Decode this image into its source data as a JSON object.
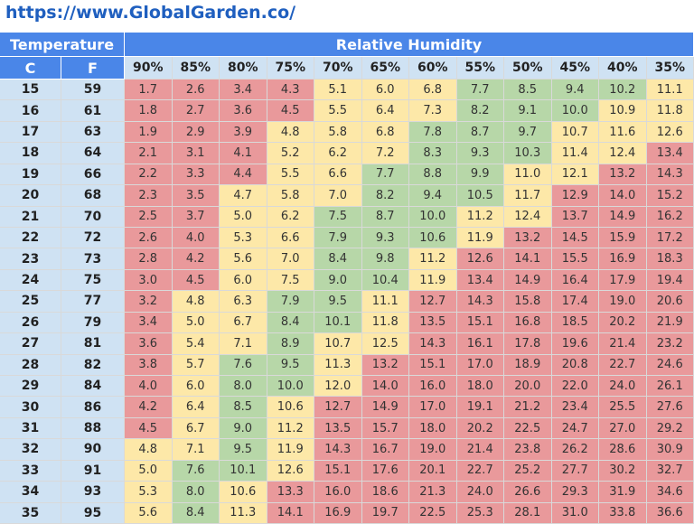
{
  "url": "https://www.GlobalGarden.co/",
  "table": {
    "temperature_header": "Temperature",
    "humidity_header": "Relative Humidity",
    "c_header": "C",
    "f_header": "F",
    "humidity": [
      "90%",
      "85%",
      "80%",
      "75%",
      "70%",
      "65%",
      "60%",
      "55%",
      "50%",
      "45%",
      "40%",
      "35%"
    ],
    "rows": [
      {
        "c": "15",
        "f": "59",
        "values": [
          "1.7",
          "2.6",
          "3.4",
          "4.3",
          "5.1",
          "6.0",
          "6.8",
          "7.7",
          "8.5",
          "9.4",
          "10.2",
          "11.1"
        ],
        "colors": [
          "#e9999b",
          "#e9999b",
          "#e9999b",
          "#e9999b",
          "#fde8a8",
          "#fde8a8",
          "#fde8a8",
          "#b7d7a8",
          "#b7d7a8",
          "#b7d7a8",
          "#b7d7a8",
          "#fde8a8"
        ]
      },
      {
        "c": "16",
        "f": "61",
        "values": [
          "1.8",
          "2.7",
          "3.6",
          "4.5",
          "5.5",
          "6.4",
          "7.3",
          "8.2",
          "9.1",
          "10.0",
          "10.9",
          "11.8"
        ],
        "colors": [
          "#e9999b",
          "#e9999b",
          "#e9999b",
          "#e9999b",
          "#fde8a8",
          "#fde8a8",
          "#fde8a8",
          "#b7d7a8",
          "#b7d7a8",
          "#b7d7a8",
          "#fde8a8",
          "#fde8a8"
        ]
      },
      {
        "c": "17",
        "f": "63",
        "values": [
          "1.9",
          "2.9",
          "3.9",
          "4.8",
          "5.8",
          "6.8",
          "7.8",
          "8.7",
          "9.7",
          "10.7",
          "11.6",
          "12.6"
        ],
        "colors": [
          "#e9999b",
          "#e9999b",
          "#e9999b",
          "#fde8a8",
          "#fde8a8",
          "#fde8a8",
          "#b7d7a8",
          "#b7d7a8",
          "#b7d7a8",
          "#fde8a8",
          "#fde8a8",
          "#fde8a8"
        ]
      },
      {
        "c": "18",
        "f": "64",
        "values": [
          "2.1",
          "3.1",
          "4.1",
          "5.2",
          "6.2",
          "7.2",
          "8.3",
          "9.3",
          "10.3",
          "11.4",
          "12.4",
          "13.4"
        ],
        "colors": [
          "#e9999b",
          "#e9999b",
          "#e9999b",
          "#fde8a8",
          "#fde8a8",
          "#fde8a8",
          "#b7d7a8",
          "#b7d7a8",
          "#b7d7a8",
          "#fde8a8",
          "#fde8a8",
          "#e9999b"
        ]
      },
      {
        "c": "19",
        "f": "66",
        "values": [
          "2.2",
          "3.3",
          "4.4",
          "5.5",
          "6.6",
          "7.7",
          "8.8",
          "9.9",
          "11.0",
          "12.1",
          "13.2",
          "14.3"
        ],
        "colors": [
          "#e9999b",
          "#e9999b",
          "#e9999b",
          "#fde8a8",
          "#fde8a8",
          "#b7d7a8",
          "#b7d7a8",
          "#b7d7a8",
          "#fde8a8",
          "#fde8a8",
          "#e9999b",
          "#e9999b"
        ]
      },
      {
        "c": "20",
        "f": "68",
        "values": [
          "2.3",
          "3.5",
          "4.7",
          "5.8",
          "7.0",
          "8.2",
          "9.4",
          "10.5",
          "11.7",
          "12.9",
          "14.0",
          "15.2"
        ],
        "colors": [
          "#e9999b",
          "#e9999b",
          "#fde8a8",
          "#fde8a8",
          "#fde8a8",
          "#b7d7a8",
          "#b7d7a8",
          "#b7d7a8",
          "#fde8a8",
          "#e9999b",
          "#e9999b",
          "#e9999b"
        ]
      },
      {
        "c": "21",
        "f": "70",
        "values": [
          "2.5",
          "3.7",
          "5.0",
          "6.2",
          "7.5",
          "8.7",
          "10.0",
          "11.2",
          "12.4",
          "13.7",
          "14.9",
          "16.2"
        ],
        "colors": [
          "#e9999b",
          "#e9999b",
          "#fde8a8",
          "#fde8a8",
          "#b7d7a8",
          "#b7d7a8",
          "#b7d7a8",
          "#fde8a8",
          "#fde8a8",
          "#e9999b",
          "#e9999b",
          "#e9999b"
        ]
      },
      {
        "c": "22",
        "f": "72",
        "values": [
          "2.6",
          "4.0",
          "5.3",
          "6.6",
          "7.9",
          "9.3",
          "10.6",
          "11.9",
          "13.2",
          "14.5",
          "15.9",
          "17.2"
        ],
        "colors": [
          "#e9999b",
          "#e9999b",
          "#fde8a8",
          "#fde8a8",
          "#b7d7a8",
          "#b7d7a8",
          "#b7d7a8",
          "#fde8a8",
          "#e9999b",
          "#e9999b",
          "#e9999b",
          "#e9999b"
        ]
      },
      {
        "c": "23",
        "f": "73",
        "values": [
          "2.8",
          "4.2",
          "5.6",
          "7.0",
          "8.4",
          "9.8",
          "11.2",
          "12.6",
          "14.1",
          "15.5",
          "16.9",
          "18.3"
        ],
        "colors": [
          "#e9999b",
          "#e9999b",
          "#fde8a8",
          "#fde8a8",
          "#b7d7a8",
          "#b7d7a8",
          "#fde8a8",
          "#e9999b",
          "#e9999b",
          "#e9999b",
          "#e9999b",
          "#e9999b"
        ]
      },
      {
        "c": "24",
        "f": "75",
        "values": [
          "3.0",
          "4.5",
          "6.0",
          "7.5",
          "9.0",
          "10.4",
          "11.9",
          "13.4",
          "14.9",
          "16.4",
          "17.9",
          "19.4"
        ],
        "colors": [
          "#e9999b",
          "#e9999b",
          "#fde8a8",
          "#fde8a8",
          "#b7d7a8",
          "#b7d7a8",
          "#fde8a8",
          "#e9999b",
          "#e9999b",
          "#e9999b",
          "#e9999b",
          "#e9999b"
        ]
      },
      {
        "c": "25",
        "f": "77",
        "values": [
          "3.2",
          "4.8",
          "6.3",
          "7.9",
          "9.5",
          "11.1",
          "12.7",
          "14.3",
          "15.8",
          "17.4",
          "19.0",
          "20.6"
        ],
        "colors": [
          "#e9999b",
          "#fde8a8",
          "#fde8a8",
          "#b7d7a8",
          "#b7d7a8",
          "#fde8a8",
          "#e9999b",
          "#e9999b",
          "#e9999b",
          "#e9999b",
          "#e9999b",
          "#e9999b"
        ]
      },
      {
        "c": "26",
        "f": "79",
        "values": [
          "3.4",
          "5.0",
          "6.7",
          "8.4",
          "10.1",
          "11.8",
          "13.5",
          "15.1",
          "16.8",
          "18.5",
          "20.2",
          "21.9"
        ],
        "colors": [
          "#e9999b",
          "#fde8a8",
          "#fde8a8",
          "#b7d7a8",
          "#b7d7a8",
          "#fde8a8",
          "#e9999b",
          "#e9999b",
          "#e9999b",
          "#e9999b",
          "#e9999b",
          "#e9999b"
        ]
      },
      {
        "c": "27",
        "f": "81",
        "values": [
          "3.6",
          "5.4",
          "7.1",
          "8.9",
          "10.7",
          "12.5",
          "14.3",
          "16.1",
          "17.8",
          "19.6",
          "21.4",
          "23.2"
        ],
        "colors": [
          "#e9999b",
          "#fde8a8",
          "#fde8a8",
          "#b7d7a8",
          "#fde8a8",
          "#fde8a8",
          "#e9999b",
          "#e9999b",
          "#e9999b",
          "#e9999b",
          "#e9999b",
          "#e9999b"
        ]
      },
      {
        "c": "28",
        "f": "82",
        "values": [
          "3.8",
          "5.7",
          "7.6",
          "9.5",
          "11.3",
          "13.2",
          "15.1",
          "17.0",
          "18.9",
          "20.8",
          "22.7",
          "24.6"
        ],
        "colors": [
          "#e9999b",
          "#fde8a8",
          "#b7d7a8",
          "#b7d7a8",
          "#fde8a8",
          "#e9999b",
          "#e9999b",
          "#e9999b",
          "#e9999b",
          "#e9999b",
          "#e9999b",
          "#e9999b"
        ]
      },
      {
        "c": "29",
        "f": "84",
        "values": [
          "4.0",
          "6.0",
          "8.0",
          "10.0",
          "12.0",
          "14.0",
          "16.0",
          "18.0",
          "20.0",
          "22.0",
          "24.0",
          "26.1"
        ],
        "colors": [
          "#e9999b",
          "#fde8a8",
          "#b7d7a8",
          "#b7d7a8",
          "#fde8a8",
          "#e9999b",
          "#e9999b",
          "#e9999b",
          "#e9999b",
          "#e9999b",
          "#e9999b",
          "#e9999b"
        ]
      },
      {
        "c": "30",
        "f": "86",
        "values": [
          "4.2",
          "6.4",
          "8.5",
          "10.6",
          "12.7",
          "14.9",
          "17.0",
          "19.1",
          "21.2",
          "23.4",
          "25.5",
          "27.6"
        ],
        "colors": [
          "#e9999b",
          "#fde8a8",
          "#b7d7a8",
          "#fde8a8",
          "#e9999b",
          "#e9999b",
          "#e9999b",
          "#e9999b",
          "#e9999b",
          "#e9999b",
          "#e9999b",
          "#e9999b"
        ]
      },
      {
        "c": "31",
        "f": "88",
        "values": [
          "4.5",
          "6.7",
          "9.0",
          "11.2",
          "13.5",
          "15.7",
          "18.0",
          "20.2",
          "22.5",
          "24.7",
          "27.0",
          "29.2"
        ],
        "colors": [
          "#e9999b",
          "#fde8a8",
          "#b7d7a8",
          "#fde8a8",
          "#e9999b",
          "#e9999b",
          "#e9999b",
          "#e9999b",
          "#e9999b",
          "#e9999b",
          "#e9999b",
          "#e9999b"
        ]
      },
      {
        "c": "32",
        "f": "90",
        "values": [
          "4.8",
          "7.1",
          "9.5",
          "11.9",
          "14.3",
          "16.7",
          "19.0",
          "21.4",
          "23.8",
          "26.2",
          "28.6",
          "30.9"
        ],
        "colors": [
          "#fde8a8",
          "#fde8a8",
          "#b7d7a8",
          "#fde8a8",
          "#e9999b",
          "#e9999b",
          "#e9999b",
          "#e9999b",
          "#e9999b",
          "#e9999b",
          "#e9999b",
          "#e9999b"
        ]
      },
      {
        "c": "33",
        "f": "91",
        "values": [
          "5.0",
          "7.6",
          "10.1",
          "12.6",
          "15.1",
          "17.6",
          "20.1",
          "22.7",
          "25.2",
          "27.7",
          "30.2",
          "32.7"
        ],
        "colors": [
          "#fde8a8",
          "#b7d7a8",
          "#b7d7a8",
          "#fde8a8",
          "#e9999b",
          "#e9999b",
          "#e9999b",
          "#e9999b",
          "#e9999b",
          "#e9999b",
          "#e9999b",
          "#e9999b"
        ]
      },
      {
        "c": "34",
        "f": "93",
        "values": [
          "5.3",
          "8.0",
          "10.6",
          "13.3",
          "16.0",
          "18.6",
          "21.3",
          "24.0",
          "26.6",
          "29.3",
          "31.9",
          "34.6"
        ],
        "colors": [
          "#fde8a8",
          "#b7d7a8",
          "#fde8a8",
          "#e9999b",
          "#e9999b",
          "#e9999b",
          "#e9999b",
          "#e9999b",
          "#e9999b",
          "#e9999b",
          "#e9999b",
          "#e9999b"
        ]
      },
      {
        "c": "35",
        "f": "95",
        "values": [
          "5.6",
          "8.4",
          "11.3",
          "14.1",
          "16.9",
          "19.7",
          "22.5",
          "25.3",
          "28.1",
          "31.0",
          "33.8",
          "36.6"
        ],
        "colors": [
          "#fde8a8",
          "#b7d7a8",
          "#fde8a8",
          "#e9999b",
          "#e9999b",
          "#e9999b",
          "#e9999b",
          "#e9999b",
          "#e9999b",
          "#e9999b",
          "#e9999b",
          "#e9999b"
        ]
      }
    ]
  }
}
